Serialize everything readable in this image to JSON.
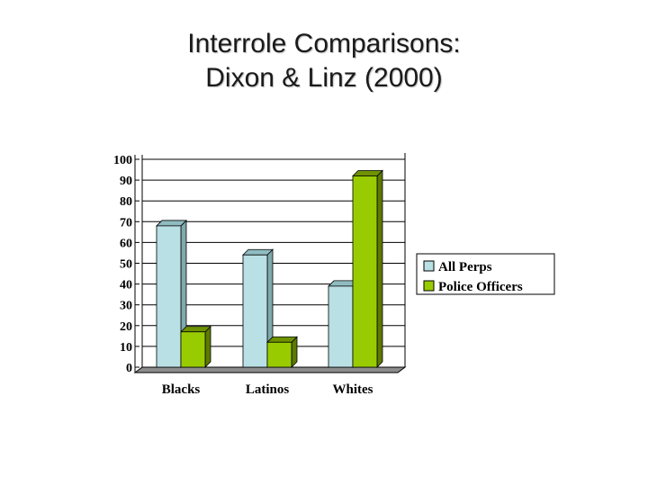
{
  "slide": {
    "title_line1": "Interrole Comparisons:",
    "title_line2": "Dixon & Linz (2000)"
  },
  "chart_data": {
    "type": "bar",
    "title": "",
    "xlabel": "",
    "ylabel": "",
    "categories": [
      "Blacks",
      "Latinos",
      "Whites"
    ],
    "series": [
      {
        "name": "All Perps",
        "values": [
          68,
          54,
          39
        ],
        "color": "#b9e0e4",
        "side_color": "#7fa9ad",
        "top_color": "#8fbcc1"
      },
      {
        "name": "Police Officers",
        "values": [
          17,
          12,
          92
        ],
        "color": "#99cc00",
        "side_color": "#5c7a00",
        "top_color": "#6e9200"
      }
    ],
    "ylim": [
      0,
      100
    ],
    "yticks": [
      "0",
      "10",
      "20",
      "30",
      "40",
      "50",
      "60",
      "70",
      "80",
      "90",
      "100"
    ],
    "grid": true,
    "legend_position": "right",
    "style": "3d-clustered-column"
  }
}
